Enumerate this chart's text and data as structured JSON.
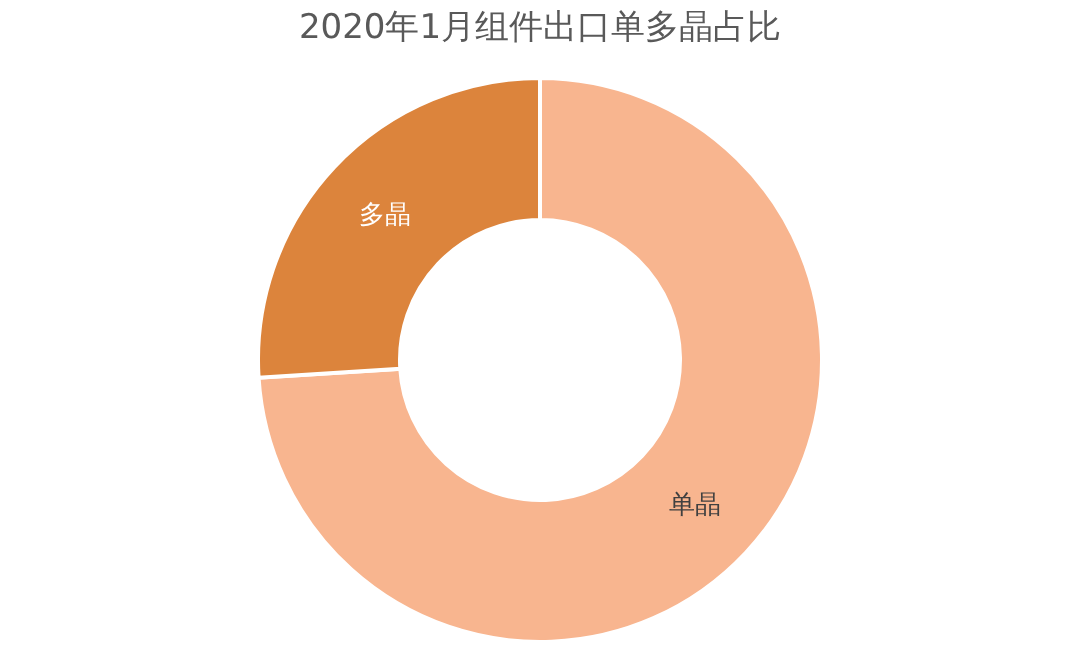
{
  "chart_data": {
    "type": "donut",
    "title": "2020年1月组件出口单多晶占比",
    "categories": [
      "单晶",
      "多晶"
    ],
    "values": [
      74,
      26
    ],
    "colors": [
      "#f8b58f",
      "#dc843c"
    ],
    "legend": false
  }
}
